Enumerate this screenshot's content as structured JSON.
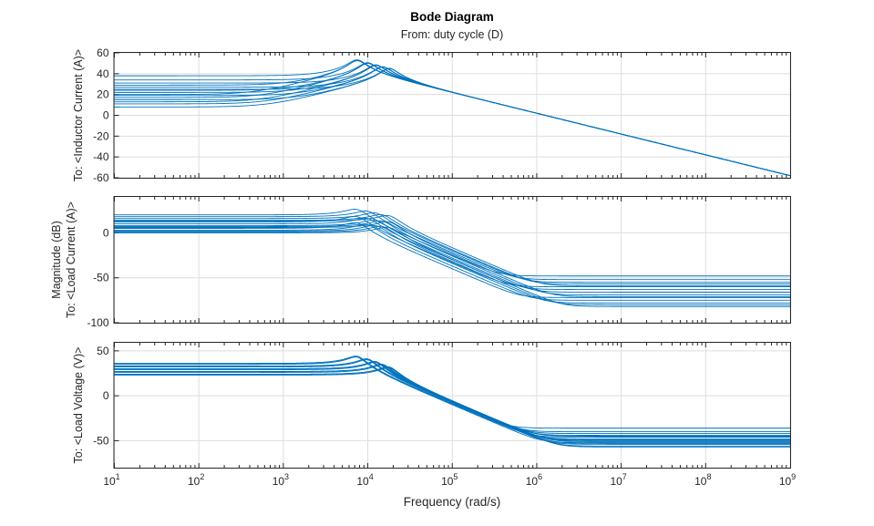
{
  "chart_data": {
    "type": "line",
    "title": "Bode Diagram",
    "subtitle": "From: duty cycle (D)",
    "xlabel": "Frequency (rad/s)",
    "ylabel_shared": "Magnitude (dB)",
    "xscale": "log",
    "xlim": [
      10,
      1000000000
    ],
    "xticks": [
      1,
      2,
      3,
      4,
      5,
      6,
      7,
      8,
      9
    ],
    "xtick_base": "10",
    "grid": true,
    "line_color": "#0072BD",
    "panels": [
      {
        "ylabel": "To: <Inductor Current (A)>",
        "ylim": [
          -60,
          60
        ],
        "yticks": [
          60,
          40,
          20,
          0,
          -20,
          -40,
          -60
        ],
        "model": "lead-resonant",
        "gain_at_1e9_db": -58,
        "series": [
          {
            "dc_gain_db": 38,
            "resonance_rad_s": 7500,
            "damping": 0.2
          },
          {
            "dc_gain_db": 29,
            "resonance_rad_s": 7500,
            "damping": 0.2
          },
          {
            "dc_gain_db": 20,
            "resonance_rad_s": 7500,
            "damping": 0.2
          },
          {
            "dc_gain_db": 34,
            "resonance_rad_s": 10000,
            "damping": 0.2
          },
          {
            "dc_gain_db": 24,
            "resonance_rad_s": 10000,
            "damping": 0.2
          },
          {
            "dc_gain_db": 17,
            "resonance_rad_s": 10000,
            "damping": 0.2
          },
          {
            "dc_gain_db": 31,
            "resonance_rad_s": 12500,
            "damping": 0.2
          },
          {
            "dc_gain_db": 22,
            "resonance_rad_s": 12500,
            "damping": 0.2
          },
          {
            "dc_gain_db": 13,
            "resonance_rad_s": 12500,
            "damping": 0.2
          },
          {
            "dc_gain_db": 27,
            "resonance_rad_s": 15000,
            "damping": 0.2
          },
          {
            "dc_gain_db": 19,
            "resonance_rad_s": 15000,
            "damping": 0.2
          },
          {
            "dc_gain_db": 11,
            "resonance_rad_s": 15000,
            "damping": 0.2
          },
          {
            "dc_gain_db": 25,
            "resonance_rad_s": 18000,
            "damping": 0.2
          },
          {
            "dc_gain_db": 15,
            "resonance_rad_s": 18000,
            "damping": 0.2
          },
          {
            "dc_gain_db": 8,
            "resonance_rad_s": 18000,
            "damping": 0.2
          }
        ]
      },
      {
        "ylabel": "To: <Load Current (A)>",
        "ylim": [
          -100,
          40
        ],
        "yticks": [
          0,
          -50,
          -100
        ],
        "model": "lowpass-floor",
        "series": [
          {
            "dc_gain_db": 20,
            "resonance_rad_s": 7500,
            "damping": 0.25,
            "hf_floor_db": -48
          },
          {
            "dc_gain_db": 12,
            "resonance_rad_s": 7500,
            "damping": 0.25,
            "hf_floor_db": -60
          },
          {
            "dc_gain_db": 5,
            "resonance_rad_s": 7500,
            "damping": 0.25,
            "hf_floor_db": -72
          },
          {
            "dc_gain_db": 18,
            "resonance_rad_s": 10000,
            "damping": 0.25,
            "hf_floor_db": -52
          },
          {
            "dc_gain_db": 10,
            "resonance_rad_s": 10000,
            "damping": 0.25,
            "hf_floor_db": -63
          },
          {
            "dc_gain_db": 3,
            "resonance_rad_s": 10000,
            "damping": 0.25,
            "hf_floor_db": -75
          },
          {
            "dc_gain_db": 16,
            "resonance_rad_s": 12500,
            "damping": 0.25,
            "hf_floor_db": -55
          },
          {
            "dc_gain_db": 8,
            "resonance_rad_s": 12500,
            "damping": 0.25,
            "hf_floor_db": -66
          },
          {
            "dc_gain_db": 2,
            "resonance_rad_s": 12500,
            "damping": 0.25,
            "hf_floor_db": -78
          },
          {
            "dc_gain_db": 14,
            "resonance_rad_s": 15000,
            "damping": 0.25,
            "hf_floor_db": -57
          },
          {
            "dc_gain_db": 7,
            "resonance_rad_s": 15000,
            "damping": 0.25,
            "hf_floor_db": -69
          },
          {
            "dc_gain_db": 1,
            "resonance_rad_s": 15000,
            "damping": 0.25,
            "hf_floor_db": -80
          },
          {
            "dc_gain_db": 13,
            "resonance_rad_s": 18000,
            "damping": 0.25,
            "hf_floor_db": -59
          },
          {
            "dc_gain_db": 6,
            "resonance_rad_s": 18000,
            "damping": 0.25,
            "hf_floor_db": -71
          },
          {
            "dc_gain_db": 0,
            "resonance_rad_s": 18000,
            "damping": 0.25,
            "hf_floor_db": -82
          }
        ]
      },
      {
        "ylabel": "To: <Load Voltage (V)>",
        "ylim": [
          -80,
          59
        ],
        "yticks": [
          50,
          0,
          -50
        ],
        "model": "lowpass-floor",
        "series": [
          {
            "dc_gain_db": 36,
            "resonance_rad_s": 7500,
            "damping": 0.2,
            "hf_floor_db": -36
          },
          {
            "dc_gain_db": 36,
            "resonance_rad_s": 7500,
            "damping": 0.2,
            "hf_floor_db": -46
          },
          {
            "dc_gain_db": 35,
            "resonance_rad_s": 7500,
            "damping": 0.2,
            "hf_floor_db": -52
          },
          {
            "dc_gain_db": 33,
            "resonance_rad_s": 10000,
            "damping": 0.2,
            "hf_floor_db": -40
          },
          {
            "dc_gain_db": 33,
            "resonance_rad_s": 10000,
            "damping": 0.2,
            "hf_floor_db": -48
          },
          {
            "dc_gain_db": 32,
            "resonance_rad_s": 10000,
            "damping": 0.2,
            "hf_floor_db": -54
          },
          {
            "dc_gain_db": 30,
            "resonance_rad_s": 12500,
            "damping": 0.2,
            "hf_floor_db": -42
          },
          {
            "dc_gain_db": 30,
            "resonance_rad_s": 12500,
            "damping": 0.2,
            "hf_floor_db": -50
          },
          {
            "dc_gain_db": 29,
            "resonance_rad_s": 12500,
            "damping": 0.2,
            "hf_floor_db": -56
          },
          {
            "dc_gain_db": 27,
            "resonance_rad_s": 15000,
            "damping": 0.2,
            "hf_floor_db": -44
          },
          {
            "dc_gain_db": 27,
            "resonance_rad_s": 15000,
            "damping": 0.2,
            "hf_floor_db": -51
          },
          {
            "dc_gain_db": 26,
            "resonance_rad_s": 15000,
            "damping": 0.2,
            "hf_floor_db": -57
          },
          {
            "dc_gain_db": 24,
            "resonance_rad_s": 18000,
            "damping": 0.2,
            "hf_floor_db": -45
          },
          {
            "dc_gain_db": 24,
            "resonance_rad_s": 18000,
            "damping": 0.2,
            "hf_floor_db": -49
          },
          {
            "dc_gain_db": 23,
            "resonance_rad_s": 18000,
            "damping": 0.2,
            "hf_floor_db": -53
          }
        ]
      }
    ]
  }
}
